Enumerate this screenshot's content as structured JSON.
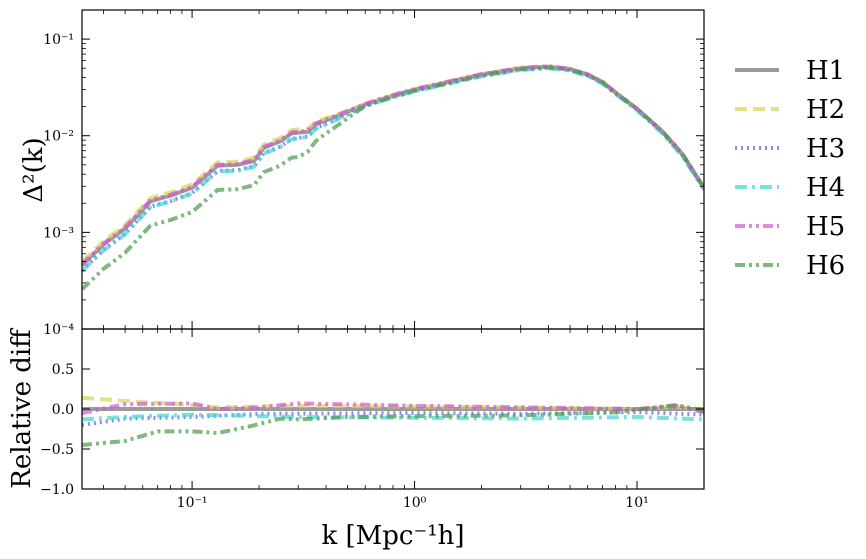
{
  "chart_data": {
    "type": "line",
    "xscale": "log",
    "xlim": [
      0.032,
      20
    ],
    "x_ticks": [
      {
        "value": 0.1,
        "label": "10⁻¹"
      },
      {
        "value": 1,
        "label": "10⁰"
      },
      {
        "value": 10,
        "label": "10¹"
      }
    ],
    "xlabel": "k [Mpc⁻¹h]",
    "legend_position": "right, outside",
    "series": [
      {
        "name": "H1",
        "color": "#707070",
        "style": "solid",
        "power_factor": 1.0,
        "rel_diff": [
          [
            0.032,
            0.0
          ],
          [
            20,
            0.0
          ]
        ]
      },
      {
        "name": "H2",
        "color": "#d4d455",
        "style": "dashed",
        "power_factor": 1.08,
        "rel_diff": [
          [
            0.032,
            0.14
          ],
          [
            0.05,
            0.1
          ],
          [
            0.1,
            0.05
          ],
          [
            0.13,
            0.02
          ],
          [
            0.3,
            0.04
          ],
          [
            1,
            0.03
          ],
          [
            3,
            0.02
          ],
          [
            10,
            0.0
          ],
          [
            15,
            0.03
          ],
          [
            20,
            -0.02
          ]
        ]
      },
      {
        "name": "H3",
        "color": "#5a5ae6",
        "style": "dotted",
        "power_factor": 0.88,
        "rel_diff": [
          [
            0.032,
            -0.2
          ],
          [
            0.05,
            -0.12
          ],
          [
            0.1,
            -0.1
          ],
          [
            0.2,
            -0.06
          ],
          [
            1,
            -0.05
          ],
          [
            3,
            -0.06
          ],
          [
            10,
            -0.04
          ],
          [
            20,
            -0.07
          ]
        ]
      },
      {
        "name": "H4",
        "color": "#40d4d4",
        "style": "dashdot",
        "power_factor": 0.87,
        "rel_diff": [
          [
            0.032,
            -0.13
          ],
          [
            0.05,
            -0.1
          ],
          [
            0.1,
            -0.07
          ],
          [
            0.3,
            -0.1
          ],
          [
            1,
            -0.11
          ],
          [
            3,
            -0.12
          ],
          [
            10,
            -0.1
          ],
          [
            20,
            -0.13
          ]
        ]
      },
      {
        "name": "H5",
        "color": "#d455d4",
        "style": "dashdotdot",
        "power_factor": 1.02,
        "rel_diff": [
          [
            0.032,
            -0.05
          ],
          [
            0.05,
            0.06
          ],
          [
            0.1,
            0.07
          ],
          [
            0.13,
            0.0
          ],
          [
            0.2,
            0.02
          ],
          [
            0.3,
            0.07
          ],
          [
            1,
            0.04
          ],
          [
            3,
            0.02
          ],
          [
            10,
            0.0
          ],
          [
            15,
            0.04
          ],
          [
            20,
            -0.04
          ]
        ]
      },
      {
        "name": "H6",
        "color": "#4a9a4a",
        "style": "dashdotdot",
        "power_factor": 0.56,
        "rel_diff": [
          [
            0.032,
            -0.45
          ],
          [
            0.05,
            -0.4
          ],
          [
            0.07,
            -0.28
          ],
          [
            0.1,
            -0.28
          ],
          [
            0.13,
            -0.3
          ],
          [
            0.18,
            -0.22
          ],
          [
            0.25,
            -0.12
          ],
          [
            0.3,
            -0.13
          ],
          [
            0.5,
            -0.1
          ],
          [
            1,
            -0.09
          ],
          [
            3,
            -0.08
          ],
          [
            8,
            -0.04
          ],
          [
            15,
            0.05
          ],
          [
            20,
            -0.02
          ]
        ]
      }
    ],
    "top_panel": {
      "ylabel": "Δ²(k)",
      "yscale": "log",
      "ylim": [
        0.0001,
        0.2
      ],
      "y_ticks": [
        {
          "value": 0.0001,
          "label": "10⁻⁴"
        },
        {
          "value": 0.001,
          "label": "10⁻³"
        },
        {
          "value": 0.01,
          "label": "10⁻²"
        },
        {
          "value": 0.1,
          "label": "10⁻¹"
        }
      ],
      "reference_curve": {
        "series": "H1",
        "points": [
          [
            0.032,
            0.00046
          ],
          [
            0.04,
            0.00075
          ],
          [
            0.05,
            0.0011
          ],
          [
            0.065,
            0.0021
          ],
          [
            0.08,
            0.0024
          ],
          [
            0.1,
            0.0029
          ],
          [
            0.113,
            0.0037
          ],
          [
            0.13,
            0.0049
          ],
          [
            0.16,
            0.005
          ],
          [
            0.19,
            0.0055
          ],
          [
            0.21,
            0.0075
          ],
          [
            0.25,
            0.0088
          ],
          [
            0.28,
            0.0106
          ],
          [
            0.33,
            0.011
          ],
          [
            0.36,
            0.0132
          ],
          [
            0.45,
            0.016
          ],
          [
            0.6,
            0.021
          ],
          [
            0.8,
            0.026
          ],
          [
            1.0,
            0.03
          ],
          [
            1.5,
            0.037
          ],
          [
            2,
            0.043
          ],
          [
            3,
            0.05
          ],
          [
            4,
            0.052
          ],
          [
            5,
            0.049
          ],
          [
            6,
            0.043
          ],
          [
            7,
            0.036
          ],
          [
            8,
            0.028
          ],
          [
            10,
            0.019
          ],
          [
            13,
            0.011
          ],
          [
            16,
            0.0064
          ],
          [
            20,
            0.0029
          ]
        ]
      },
      "power_factor_applies_below_k": 0.3,
      "power_factor_blend_until_k": 0.6
    },
    "bottom_panel": {
      "ylabel": "Relative diff",
      "ylim": [
        -1.0,
        1.0
      ],
      "y_ticks": [
        {
          "value": -1.0,
          "label": "−1.0"
        },
        {
          "value": -0.5,
          "label": "−0.5"
        },
        {
          "value": 0.0,
          "label": "0.0"
        },
        {
          "value": 0.5,
          "label": "0.5"
        }
      ]
    }
  }
}
